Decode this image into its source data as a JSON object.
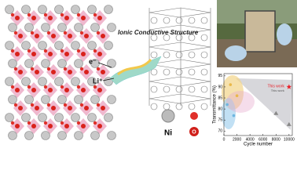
{
  "labels": {
    "structure_title": "Ionic Conductive Structure",
    "electron": "e⁻",
    "lithium": "Li⁺",
    "ni": "Ni",
    "o": "O"
  },
  "chart_data": {
    "type": "scatter",
    "x_label": "Cycle number",
    "y_label": "Transmittance (%)",
    "annotation": "This work",
    "xlim": [
      0,
      10500
    ],
    "xticks": [
      0,
      2000,
      4000,
      6000,
      8000,
      10000
    ],
    "ylim": [
      68,
      96
    ],
    "yticks": [
      70,
      75,
      80,
      85,
      90,
      95
    ],
    "series": [
      {
        "name": "This work",
        "color": "#e8202a",
        "marker": "star",
        "x": [
          10000
        ],
        "values": [
          90
        ]
      },
      {
        "color": "#888888",
        "marker": "triangle",
        "x": [
          8000,
          10000
        ],
        "values": [
          78,
          73
        ]
      },
      {
        "color": "#e9b84a",
        "marker": "circle",
        "x": [
          1000,
          2000
        ],
        "values": [
          91,
          86
        ]
      },
      {
        "color": "#6fb6e0",
        "marker": "circle",
        "x": [
          500,
          1500
        ],
        "values": [
          82,
          77
        ]
      }
    ]
  }
}
